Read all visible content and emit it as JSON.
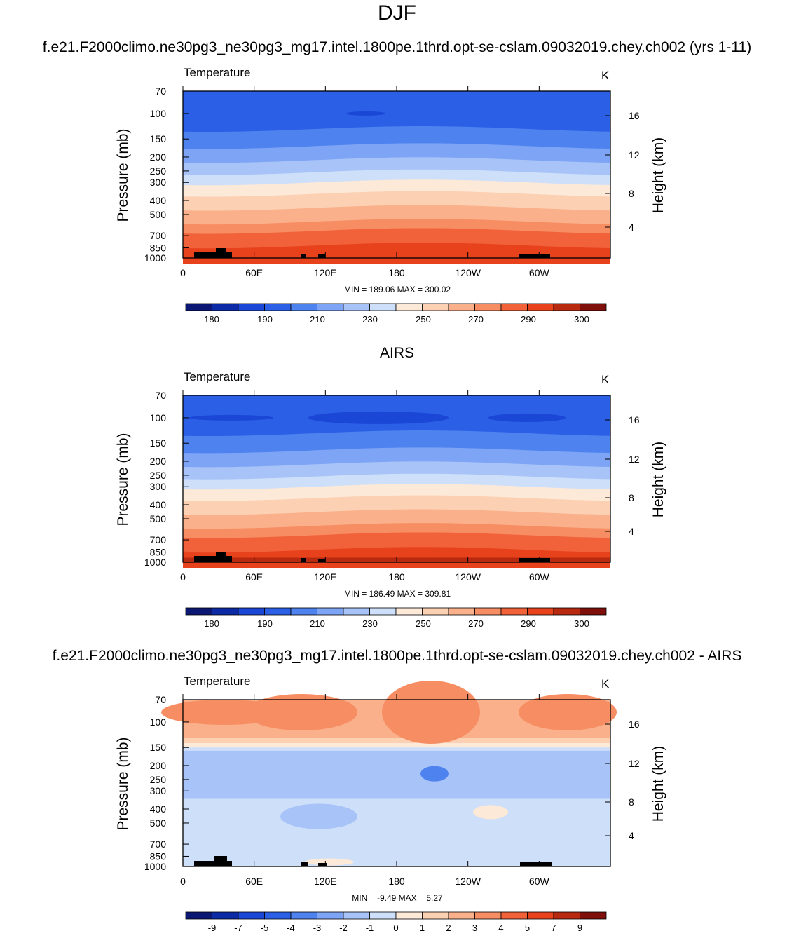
{
  "titles": {
    "main": "DJF",
    "top": "f.e21.F2000climo.ne30pg3_ne30pg3_mg17.intel.1800pe.1thrd.opt-se-cslam.09032019.chey.ch002 (yrs 1-11)",
    "middle": "AIRS",
    "bottom": "f.e21.F2000climo.ne30pg3_ne30pg3_mg17.intel.1800pe.1thrd.opt-se-cslam.09032019.chey.ch002 - AIRS"
  },
  "axes": {
    "pressure_label": "Pressure (mb)",
    "height_label": "Height (km)",
    "pressure_ticks": [
      "70",
      "100",
      "150",
      "200",
      "250",
      "300",
      "400",
      "500",
      "700",
      "850",
      "1000"
    ],
    "height_ticks": [
      "16",
      "12",
      "8",
      "4"
    ],
    "lon_ticks": [
      "0",
      "60E",
      "120E",
      "180",
      "120W",
      "60W"
    ]
  },
  "colors": {
    "temperature_palette": [
      "#0a1873",
      "#0d2aa6",
      "#1a47d6",
      "#2a5fe6",
      "#4d82ef",
      "#7ea4f5",
      "#a7c3f7",
      "#cddff9",
      "#fde9d8",
      "#fcd0b3",
      "#fab08a",
      "#f78d63",
      "#f1623a",
      "#e7421c",
      "#b82a10",
      "#7e0f0a"
    ],
    "land": "#000000"
  },
  "panels": [
    {
      "var": "Temperature",
      "units": "K",
      "stats": "MIN = 189.06  MAX = 300.02",
      "colorbar_labels": [
        "180",
        "190",
        "210",
        "230",
        "250",
        "270",
        "290",
        "300"
      ]
    },
    {
      "var": "Temperature",
      "units": "K",
      "stats": "MIN = 186.49  MAX = 309.81",
      "colorbar_labels": [
        "180",
        "190",
        "210",
        "230",
        "250",
        "270",
        "290",
        "300"
      ]
    },
    {
      "var": "Temperature",
      "units": "K",
      "stats": "MIN =  -9.49  MAX =   5.27",
      "colorbar_labels": [
        "-9",
        "-7",
        "-5",
        "-4",
        "-3",
        "-2",
        "-1",
        "0",
        "1",
        "2",
        "3",
        "4",
        "5",
        "7",
        "9"
      ]
    }
  ],
  "chart_data": [
    {
      "type": "heatmap",
      "title": "DJF",
      "subtitle": "f.e21.F2000climo.ne30pg3_ne30pg3_mg17.intel.1800pe.1thrd.opt-se-cslam.09032019.chey.ch002 (yrs 1-11)",
      "xlabel": "",
      "ylabel": "Pressure (mb)",
      "y2label": "Height (km)",
      "x_ticks": [
        "0",
        "60E",
        "120E",
        "180",
        "120W",
        "60W"
      ],
      "y_ticks": [
        "70",
        "100",
        "150",
        "200",
        "250",
        "300",
        "400",
        "500",
        "700",
        "850",
        "1000"
      ],
      "y2_ticks": [
        "16",
        "12",
        "8",
        "4"
      ],
      "ylim": [
        1000,
        70
      ],
      "legend": "bottom",
      "contour_levels": [
        180,
        185,
        190,
        200,
        210,
        220,
        230,
        240,
        250,
        260,
        270,
        280,
        290,
        295,
        300
      ],
      "min": 189.06,
      "max": 300.02
    },
    {
      "type": "heatmap",
      "title": "AIRS",
      "xlabel": "",
      "ylabel": "Pressure (mb)",
      "y2label": "Height (km)",
      "x_ticks": [
        "0",
        "60E",
        "120E",
        "180",
        "120W",
        "60W"
      ],
      "y_ticks": [
        "70",
        "100",
        "150",
        "200",
        "250",
        "300",
        "400",
        "500",
        "700",
        "850",
        "1000"
      ],
      "y2_ticks": [
        "16",
        "12",
        "8",
        "4"
      ],
      "ylim": [
        1000,
        70
      ],
      "legend": "bottom",
      "contour_levels": [
        180,
        185,
        190,
        200,
        210,
        220,
        230,
        240,
        250,
        260,
        270,
        280,
        290,
        295,
        300
      ],
      "min": 186.49,
      "max": 309.81
    },
    {
      "type": "heatmap",
      "title": "f.e21.F2000climo.ne30pg3_ne30pg3_mg17.intel.1800pe.1thrd.opt-se-cslam.09032019.chey.ch002 - AIRS",
      "xlabel": "",
      "ylabel": "Pressure (mb)",
      "y2label": "Height (km)",
      "x_ticks": [
        "0",
        "60E",
        "120E",
        "180",
        "120W",
        "60W"
      ],
      "y_ticks": [
        "70",
        "100",
        "150",
        "200",
        "250",
        "300",
        "400",
        "500",
        "700",
        "850",
        "1000"
      ],
      "y2_ticks": [
        "16",
        "12",
        "8",
        "4"
      ],
      "ylim": [
        1000,
        70
      ],
      "legend": "bottom",
      "contour_levels": [
        -9,
        -7,
        -5,
        -4,
        -3,
        -2,
        -1,
        0,
        1,
        2,
        3,
        4,
        5,
        7,
        9
      ],
      "min": -9.49,
      "max": 5.27
    }
  ]
}
